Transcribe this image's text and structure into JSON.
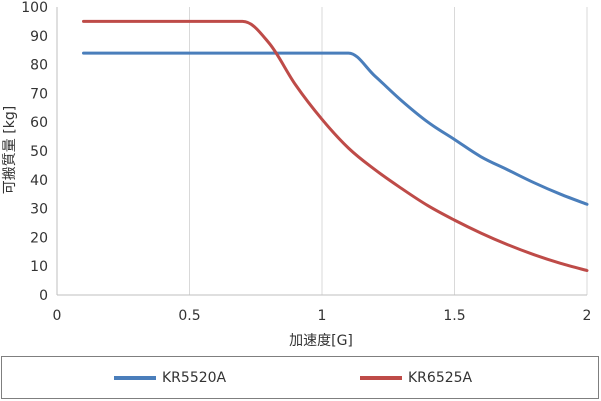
{
  "chart_data": {
    "type": "line",
    "xlabel": "加速度[G]",
    "ylabel": "可搬質量 [kg]",
    "xlim": [
      0,
      2
    ],
    "ylim": [
      0,
      100
    ],
    "xticks": [
      "0",
      "0.5",
      "1",
      "1.5",
      "2"
    ],
    "yticks": [
      "0",
      "10",
      "20",
      "30",
      "40",
      "50",
      "60",
      "70",
      "80",
      "90",
      "100"
    ],
    "grid": "vertical",
    "legend_position": "bottom",
    "series": [
      {
        "name": "KR5520A",
        "color": "#4a7ebb",
        "x": [
          0.1,
          0.2,
          0.3,
          0.4,
          0.5,
          0.6,
          0.7,
          0.8,
          0.9,
          1.0,
          1.1,
          1.2,
          1.3,
          1.4,
          1.5,
          1.6,
          1.7,
          1.8,
          1.9,
          2.0
        ],
        "y": [
          84,
          84,
          84,
          84,
          84,
          84,
          84,
          84,
          84,
          84,
          84,
          76,
          67.5,
          60,
          54,
          48,
          43.5,
          39,
          35,
          31.5
        ]
      },
      {
        "name": "KR6525A",
        "color": "#be4b48",
        "x": [
          0.1,
          0.2,
          0.3,
          0.4,
          0.5,
          0.6,
          0.7,
          0.8,
          0.9,
          1.0,
          1.1,
          1.2,
          1.3,
          1.4,
          1.5,
          1.6,
          1.7,
          1.8,
          1.9,
          2.0
        ],
        "y": [
          95,
          95,
          95,
          95,
          95,
          95,
          95,
          87.5,
          73,
          61,
          51,
          43.5,
          37,
          31,
          26,
          21.5,
          17.5,
          14,
          11,
          8.5
        ]
      }
    ]
  }
}
